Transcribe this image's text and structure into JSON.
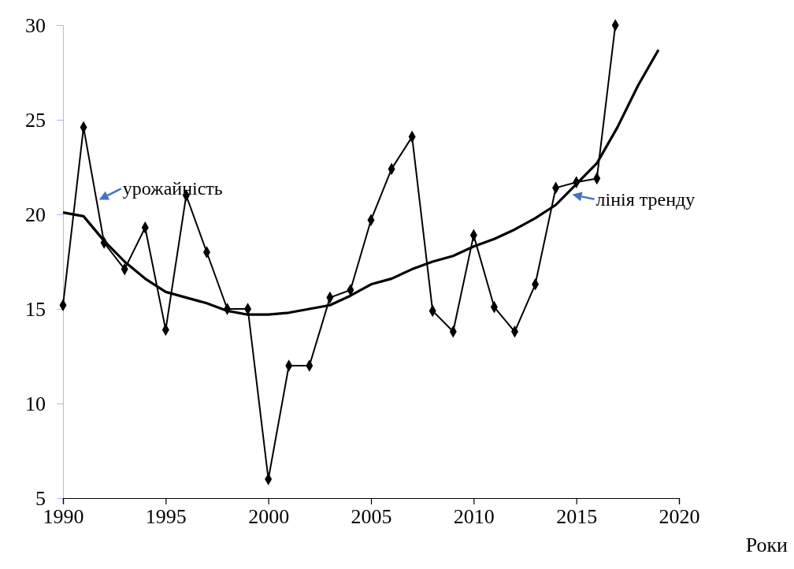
{
  "chart_data": {
    "type": "line",
    "xlabel": "Роки",
    "xlim": [
      1990,
      2020
    ],
    "xticks": [
      1990,
      1995,
      2000,
      2005,
      2010,
      2015,
      2020
    ],
    "ylim": [
      5,
      30
    ],
    "yticks": [
      5,
      10,
      15,
      20,
      25,
      30
    ],
    "grid": false,
    "series": [
      {
        "color": "#000000",
        "marker": "diamond",
        "x": [
          1990,
          1991,
          1992,
          1993,
          1994,
          1995,
          1996,
          1997,
          1998,
          1999,
          2000,
          2001,
          2002,
          2003,
          2004,
          2005,
          2006,
          2007,
          2008,
          2009,
          2010,
          2011,
          2012,
          2013,
          2014,
          2015,
          2016,
          2016.9
        ],
        "values": [
          15.2,
          24.6,
          18.5,
          17.1,
          19.3,
          13.9,
          21.0,
          18.0,
          15.0,
          15.0,
          6.0,
          12.0,
          12.0,
          15.6,
          16.0,
          19.7,
          22.4,
          24.1,
          14.9,
          13.8,
          18.9,
          15.1,
          13.8,
          16.3,
          21.4,
          21.7,
          21.9,
          30
        ]
      },
      {
        "color": "#000000",
        "marker": "none",
        "x": [
          1990,
          1991,
          1992,
          1993,
          1994,
          1995,
          1996,
          1997,
          1998,
          1999,
          2000,
          2001,
          2002,
          2003,
          2004,
          2005,
          2006,
          2007,
          2008,
          2009,
          2010,
          2011,
          2012,
          2013,
          2014,
          2015,
          2016,
          2017,
          2018,
          2019
        ],
        "values": [
          20.1,
          19.9,
          18.6,
          17.5,
          16.6,
          15.9,
          15.6,
          15.3,
          14.9,
          14.7,
          14.7,
          14.8,
          15.0,
          15.2,
          15.7,
          16.3,
          16.6,
          17.1,
          17.5,
          17.8,
          18.3,
          18.7,
          19.2,
          19.8,
          20.5,
          21.6,
          22.7,
          24.6,
          26.8,
          28.7
        ]
      }
    ],
    "annotations": [
      "урожайність",
      "лінія тренду"
    ]
  }
}
